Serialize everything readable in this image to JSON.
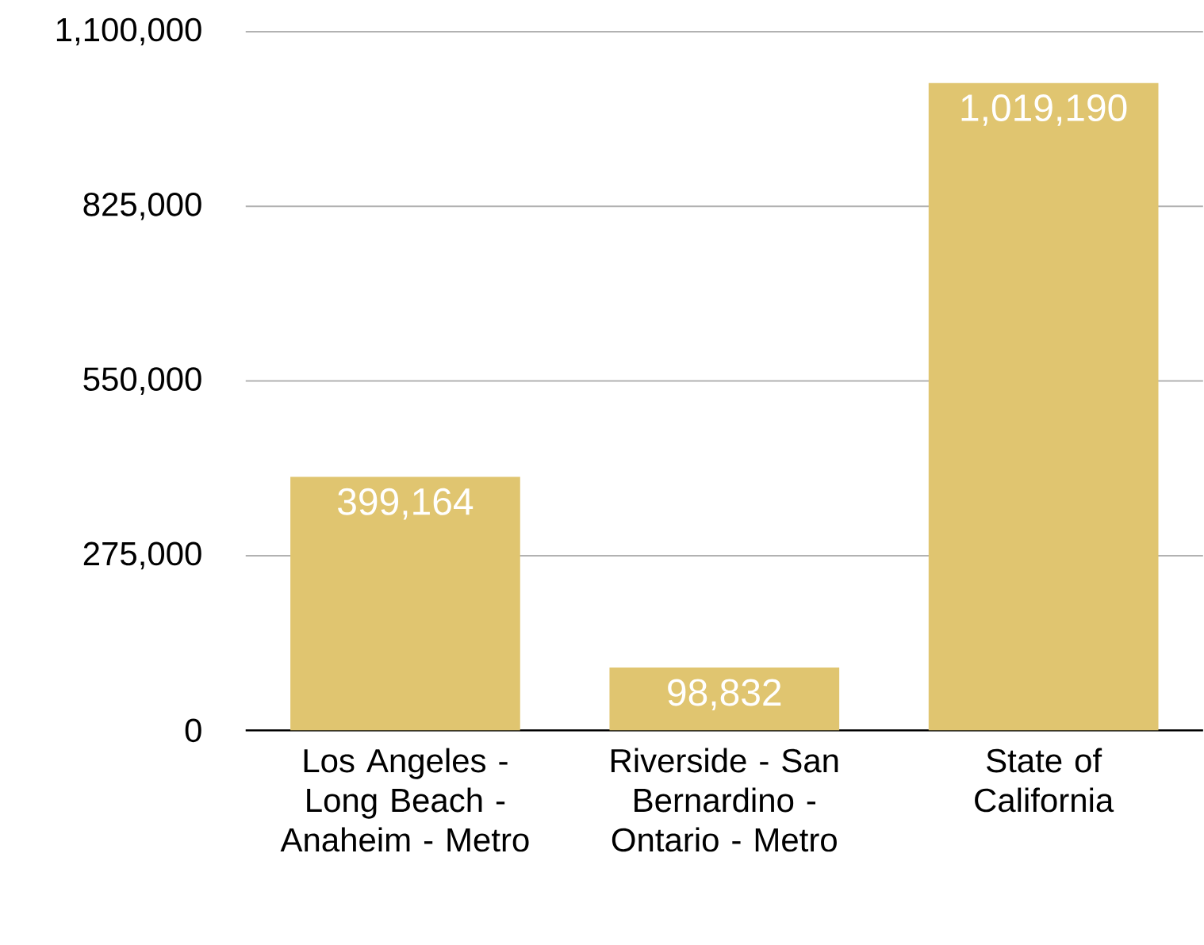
{
  "chart_data": {
    "type": "bar",
    "categories": [
      "Los Angeles - Long Beach - Anaheim - Metro",
      "Riverside - San Bernardino - Ontario - Metro",
      "State of California"
    ],
    "values": [
      399164,
      98832,
      1019190
    ],
    "color": "#e0c570",
    "value_labels": [
      "399,164",
      "98,832",
      "1,019,190"
    ],
    "ylim": [
      0,
      1100000
    ],
    "yticks": [
      {
        "value": 0,
        "label": "0"
      },
      {
        "value": 275000,
        "label": "275,000"
      },
      {
        "value": 550000,
        "label": "550,000"
      },
      {
        "value": 825000,
        "label": "825,000"
      },
      {
        "value": 1100000,
        "label": "1,100,000"
      }
    ],
    "grid": "y"
  }
}
